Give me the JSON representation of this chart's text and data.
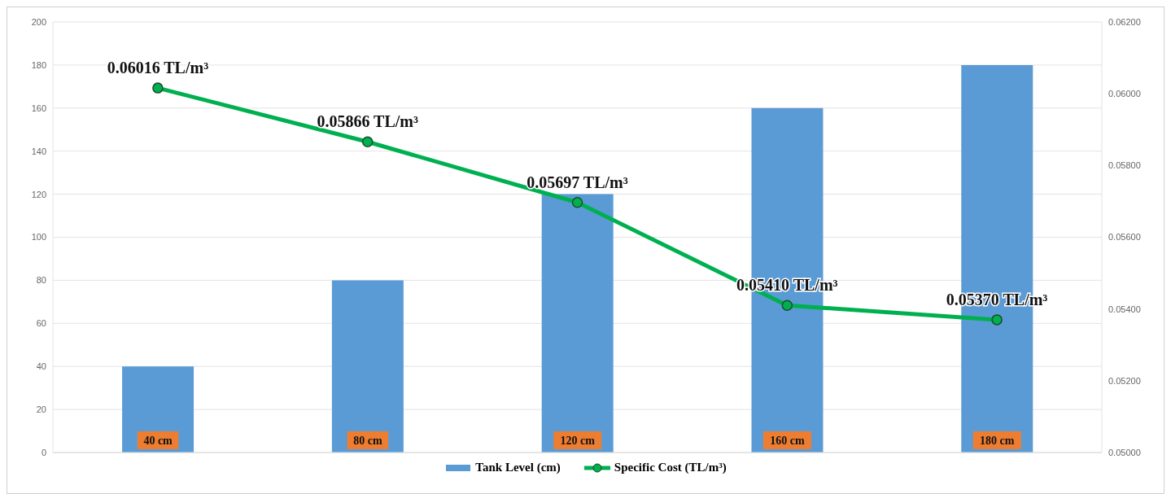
{
  "chart_data": {
    "type": "bar",
    "categories": [
      null,
      null,
      null,
      null,
      null
    ],
    "series": [
      {
        "name": "Tank Level (cm)",
        "color": "#5b9bd5",
        "values": [
          40,
          80,
          120,
          160,
          180
        ],
        "value_labels": [
          "40 cm",
          "80 cm",
          "120 cm",
          "160 cm",
          "180 cm"
        ]
      },
      {
        "name": "Specific Cost (TL/m³)",
        "type": "line",
        "axis": "y2",
        "color": "#00b050",
        "values": [
          0.06016,
          0.05866,
          0.05697,
          0.0541,
          0.0537
        ],
        "value_labels": [
          "0.06016 TL/m³",
          "0.05866 TL/m³",
          "0.05697 TL/m³",
          "0.05410 TL/m³",
          "0.05370 TL/m³"
        ]
      }
    ],
    "ylim": [
      0,
      200
    ],
    "yticks": [
      0,
      20,
      40,
      60,
      80,
      100,
      120,
      140,
      160,
      180,
      200
    ],
    "y2lim": [
      0.05,
      0.062
    ],
    "y2ticks": [
      {
        "value": 0.05,
        "label": "0.05000"
      },
      {
        "value": 0.052,
        "label": "0.05200"
      },
      {
        "value": 0.054,
        "label": "0.05400"
      },
      {
        "value": 0.056,
        "label": "0.05600"
      },
      {
        "value": 0.058,
        "label": "0.05800"
      },
      {
        "value": 0.06,
        "label": "0.06000"
      },
      {
        "value": 0.062,
        "label": "0.06200"
      }
    ],
    "grid": "y",
    "legend": "bottom",
    "marker": "circle",
    "line_style": "solid",
    "tick_labels": "y"
  }
}
